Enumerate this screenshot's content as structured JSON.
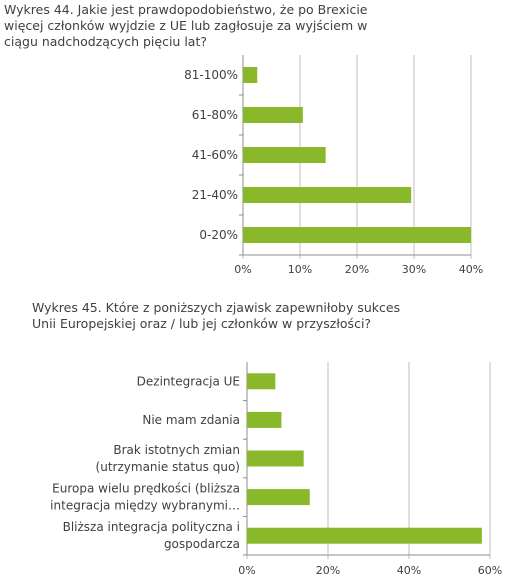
{
  "chart_data": [
    {
      "type": "bar",
      "orientation": "horizontal",
      "title": "Wykres 44. Jakie jest prawdopodobieństwo, że po Brexicie\nwięcej członków wyjdzie z UE lub zagłosuje za wyjściem w\nciągu nadchodzących pięciu lat?",
      "categories": [
        "81-100%",
        "61-80%",
        "41-60%",
        "21-40%",
        "0-20%"
      ],
      "values": [
        2.5,
        10.5,
        14.5,
        29.5,
        40
      ],
      "xlim": [
        0,
        40
      ],
      "x_ticks": [
        "0%",
        "10%",
        "20%",
        "30%",
        "40%"
      ],
      "grid": true,
      "bar_color": "#8ab82b"
    },
    {
      "type": "bar",
      "orientation": "horizontal",
      "title": "Wykres 45. Które z poniższych zjawisk zapewniłoby sukces\nUnii Europejskiej oraz / lub jej członków w przyszłości?",
      "categories": [
        "Dezintegracja UE",
        "Nie mam zdania",
        "Brak istotnych zmian\n(utrzymanie status quo)",
        "Europa wielu prędkości (bliższa\nintegracja między wybranymi…",
        "Bliższa integracja polityczna i\ngospodarcza"
      ],
      "values": [
        7,
        8.5,
        14,
        15.5,
        58
      ],
      "xlim": [
        0,
        60
      ],
      "x_ticks": [
        "0%",
        "20%",
        "40%",
        "60%"
      ],
      "grid": true,
      "bar_color": "#8ab82b"
    }
  ]
}
